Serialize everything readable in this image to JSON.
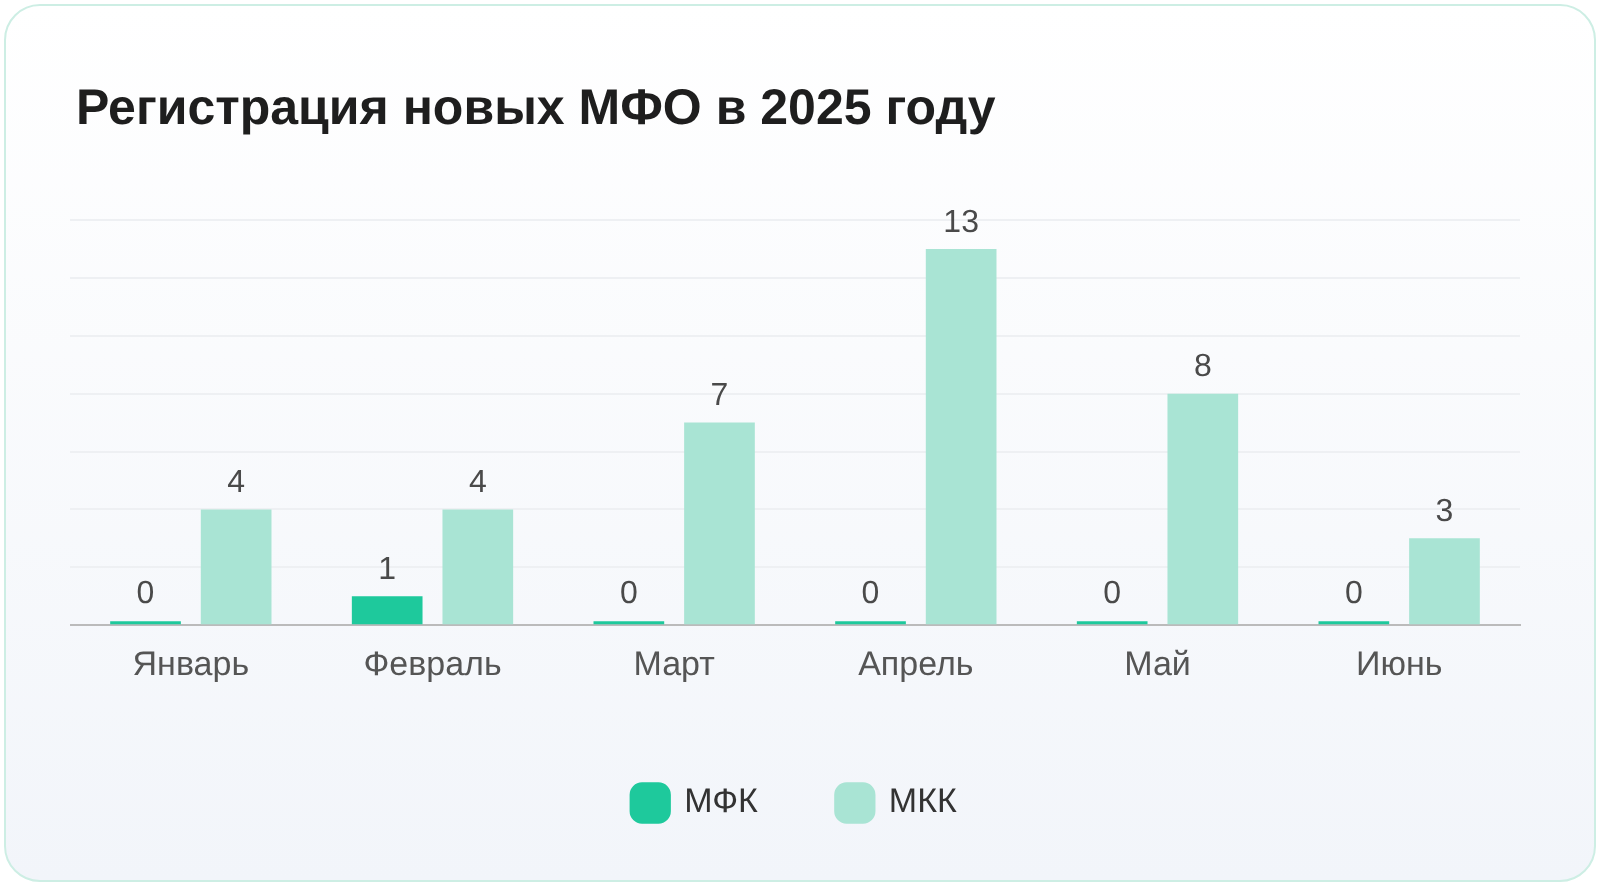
{
  "chart_data": {
    "type": "bar",
    "title": "Регистрация новых МФО в 2025 году",
    "categories": [
      "Январь",
      "Февраль",
      "Март",
      "Апрель",
      "Май",
      "Июнь"
    ],
    "series": [
      {
        "name": "МФК",
        "color": "#1ec99c",
        "values": [
          0,
          1,
          0,
          0,
          0,
          0
        ]
      },
      {
        "name": "МКК",
        "color": "#a9e4d4",
        "values": [
          4,
          4,
          7,
          13,
          8,
          3
        ]
      }
    ],
    "ylim": [
      0,
      14
    ],
    "yticks": [
      {
        "value": 0,
        "label": null
      },
      {
        "value": 2,
        "label": null
      },
      {
        "value": 4,
        "label": null
      },
      {
        "value": 6,
        "label": null
      },
      {
        "value": 8,
        "label": null
      },
      {
        "value": 10,
        "label": null
      },
      {
        "value": 12,
        "label": null
      },
      {
        "value": 14,
        "label": null
      }
    ],
    "grid": "y",
    "legend": "bottom",
    "data_labels": true,
    "tick_labels": "x"
  }
}
